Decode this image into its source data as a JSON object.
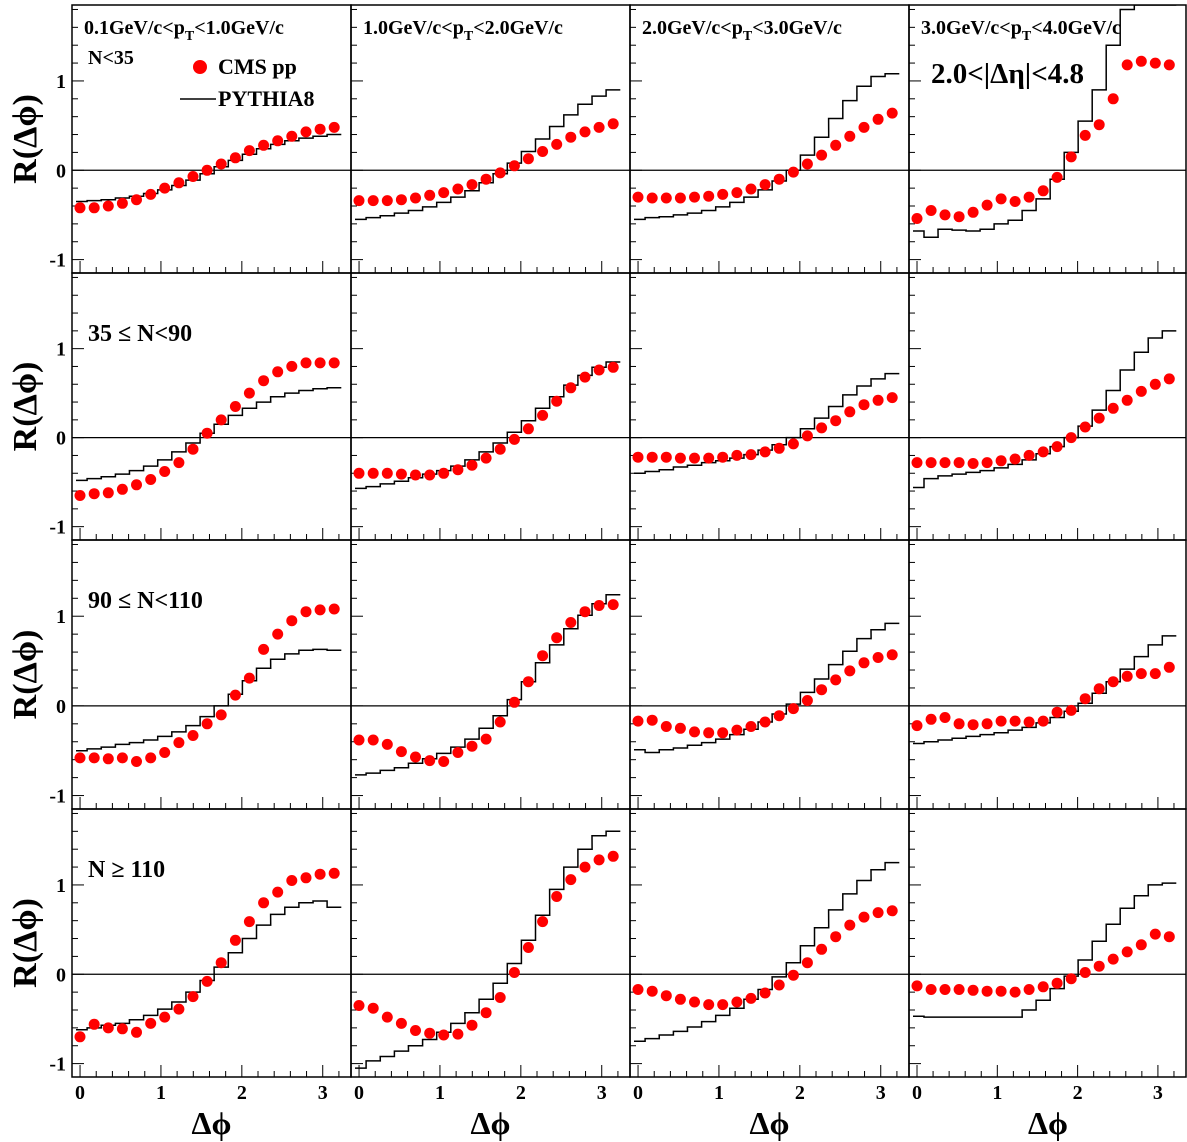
{
  "figure": {
    "ylabel": "R(Δϕ)",
    "xlabel": "Δϕ",
    "eta_label": "2.0<|Δη|<4.8",
    "legend": {
      "data_label": "CMS pp",
      "mc_label": "PYTHIA8"
    },
    "pt_bins": [
      {
        "pre": "0.1GeV/c<p",
        "sub": "T",
        "post": "<1.0GeV/c"
      },
      {
        "pre": "1.0GeV/c<p",
        "sub": "T",
        "post": "<2.0GeV/c"
      },
      {
        "pre": "2.0GeV/c<p",
        "sub": "T",
        "post": "<3.0GeV/c"
      },
      {
        "pre": "3.0GeV/c<p",
        "sub": "T",
        "post": "<4.0GeV/c"
      }
    ],
    "mult_bins": [
      "N<35",
      "35 ≤ N<90",
      "90 ≤ N<110",
      "N ≥ 110"
    ],
    "x_ticks": [
      "0",
      "1",
      "2",
      "3"
    ],
    "y_ticks": [
      "-1",
      "0",
      "1"
    ],
    "colors": {
      "data": "#ff0000",
      "mc": "#000000"
    }
  },
  "chart_data": {
    "type": "scatter",
    "layout": "4x4 grid: rows = multiplicity bins, columns = pT bins",
    "xlabel": "Δϕ",
    "ylabel": "R(Δϕ)",
    "xlim": [
      -0.05,
      3.3
    ],
    "ylim": [
      -1.15,
      1.85
    ],
    "x": [
      0.0,
      0.175,
      0.349,
      0.524,
      0.698,
      0.873,
      1.047,
      1.222,
      1.396,
      1.571,
      1.745,
      1.92,
      2.094,
      2.269,
      2.443,
      2.618,
      2.793,
      2.967,
      3.142
    ],
    "panels": [
      {
        "row": 0,
        "col": 0,
        "series": [
          {
            "name": "CMS pp",
            "values": [
              -0.42,
              -0.42,
              -0.4,
              -0.37,
              -0.33,
              -0.27,
              -0.2,
              -0.14,
              -0.07,
              0.0,
              0.07,
              0.14,
              0.22,
              0.28,
              0.33,
              0.38,
              0.43,
              0.46,
              0.48
            ]
          },
          {
            "name": "PYTHIA8",
            "values": [
              -0.35,
              -0.34,
              -0.33,
              -0.31,
              -0.29,
              -0.26,
              -0.22,
              -0.17,
              -0.11,
              -0.04,
              0.04,
              0.11,
              0.18,
              0.24,
              0.29,
              0.33,
              0.36,
              0.38,
              0.4
            ]
          }
        ]
      },
      {
        "row": 0,
        "col": 1,
        "series": [
          {
            "name": "CMS pp",
            "values": [
              -0.34,
              -0.34,
              -0.34,
              -0.33,
              -0.31,
              -0.28,
              -0.25,
              -0.21,
              -0.16,
              -0.1,
              -0.03,
              0.05,
              0.13,
              0.21,
              0.29,
              0.37,
              0.43,
              0.48,
              0.52
            ]
          },
          {
            "name": "PYTHIA8",
            "values": [
              -0.55,
              -0.53,
              -0.51,
              -0.48,
              -0.45,
              -0.41,
              -0.36,
              -0.3,
              -0.23,
              -0.14,
              -0.04,
              0.08,
              0.21,
              0.35,
              0.49,
              0.62,
              0.74,
              0.83,
              0.9
            ]
          }
        ]
      },
      {
        "row": 0,
        "col": 2,
        "series": [
          {
            "name": "CMS pp",
            "values": [
              -0.3,
              -0.31,
              -0.31,
              -0.31,
              -0.3,
              -0.29,
              -0.27,
              -0.25,
              -0.21,
              -0.16,
              -0.1,
              -0.02,
              0.07,
              0.17,
              0.28,
              0.38,
              0.48,
              0.57,
              0.64
            ]
          },
          {
            "name": "PYTHIA8",
            "values": [
              -0.55,
              -0.53,
              -0.52,
              -0.5,
              -0.48,
              -0.45,
              -0.41,
              -0.36,
              -0.3,
              -0.22,
              -0.12,
              0.0,
              0.17,
              0.37,
              0.58,
              0.78,
              0.94,
              1.05,
              1.08
            ]
          }
        ]
      },
      {
        "row": 0,
        "col": 3,
        "series": [
          {
            "name": "CMS pp",
            "values": [
              -0.54,
              -0.45,
              -0.5,
              -0.52,
              -0.47,
              -0.39,
              -0.32,
              -0.35,
              -0.3,
              -0.23,
              -0.08,
              0.15,
              0.39,
              0.51,
              0.8,
              1.18,
              1.22,
              1.2,
              1.18
            ]
          },
          {
            "name": "PYTHIA8",
            "values": [
              -0.68,
              -0.75,
              -0.66,
              -0.67,
              -0.68,
              -0.66,
              -0.6,
              -0.56,
              -0.45,
              -0.32,
              -0.1,
              0.2,
              0.55,
              0.9,
              1.4,
              1.8,
              1.85,
              1.85,
              1.85
            ]
          }
        ]
      },
      {
        "row": 1,
        "col": 0,
        "series": [
          {
            "name": "CMS pp",
            "values": [
              -0.65,
              -0.63,
              -0.62,
              -0.58,
              -0.53,
              -0.47,
              -0.38,
              -0.28,
              -0.13,
              0.05,
              0.2,
              0.35,
              0.5,
              0.64,
              0.74,
              0.8,
              0.84,
              0.84,
              0.84
            ]
          },
          {
            "name": "PYTHIA8",
            "values": [
              -0.48,
              -0.46,
              -0.44,
              -0.41,
              -0.37,
              -0.32,
              -0.25,
              -0.16,
              -0.06,
              0.05,
              0.15,
              0.25,
              0.33,
              0.4,
              0.46,
              0.5,
              0.53,
              0.55,
              0.56
            ]
          }
        ]
      },
      {
        "row": 1,
        "col": 1,
        "series": [
          {
            "name": "CMS pp",
            "values": [
              -0.4,
              -0.4,
              -0.4,
              -0.41,
              -0.42,
              -0.42,
              -0.4,
              -0.36,
              -0.31,
              -0.23,
              -0.13,
              -0.02,
              0.1,
              0.25,
              0.41,
              0.56,
              0.68,
              0.76,
              0.79
            ]
          },
          {
            "name": "PYTHIA8",
            "values": [
              -0.57,
              -0.55,
              -0.52,
              -0.49,
              -0.45,
              -0.41,
              -0.37,
              -0.32,
              -0.25,
              -0.16,
              -0.06,
              0.06,
              0.19,
              0.33,
              0.46,
              0.59,
              0.7,
              0.79,
              0.85
            ]
          }
        ]
      },
      {
        "row": 1,
        "col": 2,
        "series": [
          {
            "name": "CMS pp",
            "values": [
              -0.22,
              -0.22,
              -0.22,
              -0.23,
              -0.23,
              -0.23,
              -0.22,
              -0.2,
              -0.19,
              -0.16,
              -0.12,
              -0.07,
              0.02,
              0.11,
              0.19,
              0.29,
              0.37,
              0.42,
              0.45
            ]
          },
          {
            "name": "PYTHIA8",
            "values": [
              -0.4,
              -0.38,
              -0.36,
              -0.33,
              -0.31,
              -0.28,
              -0.26,
              -0.23,
              -0.19,
              -0.14,
              -0.08,
              0.0,
              0.1,
              0.22,
              0.35,
              0.48,
              0.58,
              0.66,
              0.72
            ]
          }
        ]
      },
      {
        "row": 1,
        "col": 3,
        "series": [
          {
            "name": "CMS pp",
            "values": [
              -0.28,
              -0.28,
              -0.28,
              -0.28,
              -0.29,
              -0.28,
              -0.26,
              -0.24,
              -0.2,
              -0.16,
              -0.1,
              0.0,
              0.12,
              0.22,
              0.33,
              0.42,
              0.52,
              0.6,
              0.66
            ]
          },
          {
            "name": "PYTHIA8",
            "values": [
              -0.56,
              -0.46,
              -0.43,
              -0.41,
              -0.39,
              -0.37,
              -0.34,
              -0.3,
              -0.25,
              -0.18,
              -0.1,
              0.0,
              0.13,
              0.31,
              0.53,
              0.76,
              0.96,
              1.12,
              1.2
            ]
          }
        ]
      },
      {
        "row": 2,
        "col": 0,
        "series": [
          {
            "name": "CMS pp",
            "values": [
              -0.58,
              -0.58,
              -0.59,
              -0.58,
              -0.62,
              -0.58,
              -0.52,
              -0.41,
              -0.33,
              -0.2,
              -0.1,
              0.12,
              0.31,
              0.63,
              0.8,
              0.95,
              1.05,
              1.07,
              1.08
            ]
          },
          {
            "name": "PYTHIA8",
            "values": [
              -0.5,
              -0.48,
              -0.46,
              -0.43,
              -0.41,
              -0.38,
              -0.34,
              -0.29,
              -0.22,
              -0.12,
              0.0,
              0.13,
              0.28,
              0.42,
              0.52,
              0.58,
              0.62,
              0.63,
              0.62
            ]
          }
        ]
      },
      {
        "row": 2,
        "col": 1,
        "series": [
          {
            "name": "CMS pp",
            "values": [
              -0.38,
              -0.38,
              -0.43,
              -0.51,
              -0.57,
              -0.61,
              -0.62,
              -0.52,
              -0.45,
              -0.37,
              -0.18,
              0.04,
              0.27,
              0.56,
              0.76,
              0.93,
              1.05,
              1.12,
              1.13
            ]
          },
          {
            "name": "PYTHIA8",
            "values": [
              -0.77,
              -0.75,
              -0.72,
              -0.69,
              -0.64,
              -0.59,
              -0.53,
              -0.46,
              -0.37,
              -0.25,
              -0.11,
              0.07,
              0.27,
              0.48,
              0.68,
              0.86,
              1.01,
              1.14,
              1.24
            ]
          }
        ]
      },
      {
        "row": 2,
        "col": 2,
        "series": [
          {
            "name": "CMS pp",
            "values": [
              -0.17,
              -0.16,
              -0.23,
              -0.25,
              -0.29,
              -0.3,
              -0.3,
              -0.27,
              -0.23,
              -0.18,
              -0.11,
              -0.03,
              0.06,
              0.18,
              0.29,
              0.39,
              0.48,
              0.54,
              0.57
            ]
          },
          {
            "name": "PYTHIA8",
            "values": [
              -0.49,
              -0.52,
              -0.49,
              -0.47,
              -0.44,
              -0.41,
              -0.37,
              -0.32,
              -0.26,
              -0.18,
              -0.09,
              0.02,
              0.15,
              0.3,
              0.46,
              0.61,
              0.75,
              0.85,
              0.92
            ]
          }
        ]
      },
      {
        "row": 2,
        "col": 3,
        "series": [
          {
            "name": "CMS pp",
            "values": [
              -0.22,
              -0.15,
              -0.13,
              -0.2,
              -0.21,
              -0.2,
              -0.17,
              -0.17,
              -0.18,
              -0.17,
              -0.07,
              -0.05,
              0.08,
              0.19,
              0.27,
              0.33,
              0.36,
              0.36,
              0.43
            ]
          },
          {
            "name": "PYTHIA8",
            "values": [
              -0.42,
              -0.4,
              -0.38,
              -0.36,
              -0.34,
              -0.32,
              -0.3,
              -0.27,
              -0.24,
              -0.19,
              -0.13,
              -0.06,
              0.03,
              0.14,
              0.27,
              0.41,
              0.55,
              0.68,
              0.78
            ]
          }
        ]
      },
      {
        "row": 3,
        "col": 0,
        "series": [
          {
            "name": "CMS pp",
            "values": [
              -0.7,
              -0.56,
              -0.6,
              -0.61,
              -0.65,
              -0.55,
              -0.48,
              -0.39,
              -0.25,
              -0.08,
              0.13,
              0.38,
              0.59,
              0.8,
              0.92,
              1.05,
              1.08,
              1.12,
              1.13
            ]
          },
          {
            "name": "PYTHIA8",
            "values": [
              -0.62,
              -0.6,
              -0.57,
              -0.55,
              -0.51,
              -0.46,
              -0.39,
              -0.31,
              -0.2,
              -0.07,
              0.08,
              0.24,
              0.4,
              0.55,
              0.67,
              0.75,
              0.8,
              0.82,
              0.75
            ]
          }
        ]
      },
      {
        "row": 3,
        "col": 1,
        "series": [
          {
            "name": "CMS pp",
            "values": [
              -0.35,
              -0.38,
              -0.48,
              -0.55,
              -0.63,
              -0.66,
              -0.68,
              -0.67,
              -0.57,
              -0.43,
              -0.26,
              0.02,
              0.3,
              0.59,
              0.87,
              1.06,
              1.2,
              1.28,
              1.32
            ]
          },
          {
            "name": "PYTHIA8",
            "values": [
              -1.05,
              -0.97,
              -0.92,
              -0.86,
              -0.8,
              -0.73,
              -0.65,
              -0.55,
              -0.43,
              -0.28,
              -0.1,
              0.12,
              0.38,
              0.66,
              0.95,
              1.2,
              1.4,
              1.55,
              1.6
            ]
          }
        ]
      },
      {
        "row": 3,
        "col": 2,
        "series": [
          {
            "name": "CMS pp",
            "values": [
              -0.17,
              -0.19,
              -0.24,
              -0.28,
              -0.31,
              -0.34,
              -0.34,
              -0.31,
              -0.27,
              -0.21,
              -0.12,
              -0.01,
              0.13,
              0.28,
              0.42,
              0.55,
              0.64,
              0.69,
              0.71
            ]
          },
          {
            "name": "PYTHIA8",
            "values": [
              -0.75,
              -0.72,
              -0.68,
              -0.64,
              -0.59,
              -0.53,
              -0.46,
              -0.38,
              -0.28,
              -0.17,
              -0.03,
              0.13,
              0.32,
              0.52,
              0.72,
              0.9,
              1.05,
              1.17,
              1.25
            ]
          }
        ]
      },
      {
        "row": 3,
        "col": 3,
        "series": [
          {
            "name": "CMS pp",
            "values": [
              -0.13,
              -0.17,
              -0.17,
              -0.17,
              -0.18,
              -0.19,
              -0.19,
              -0.2,
              -0.17,
              -0.14,
              -0.1,
              -0.05,
              0.02,
              0.09,
              0.17,
              0.25,
              0.33,
              0.45,
              0.42
            ]
          },
          {
            "name": "PYTHIA8",
            "values": [
              -0.47,
              -0.48,
              -0.48,
              -0.48,
              -0.48,
              -0.48,
              -0.48,
              -0.48,
              -0.4,
              -0.29,
              -0.16,
              -0.02,
              0.16,
              0.37,
              0.56,
              0.74,
              0.88,
              1.0,
              1.02
            ]
          }
        ]
      }
    ]
  }
}
